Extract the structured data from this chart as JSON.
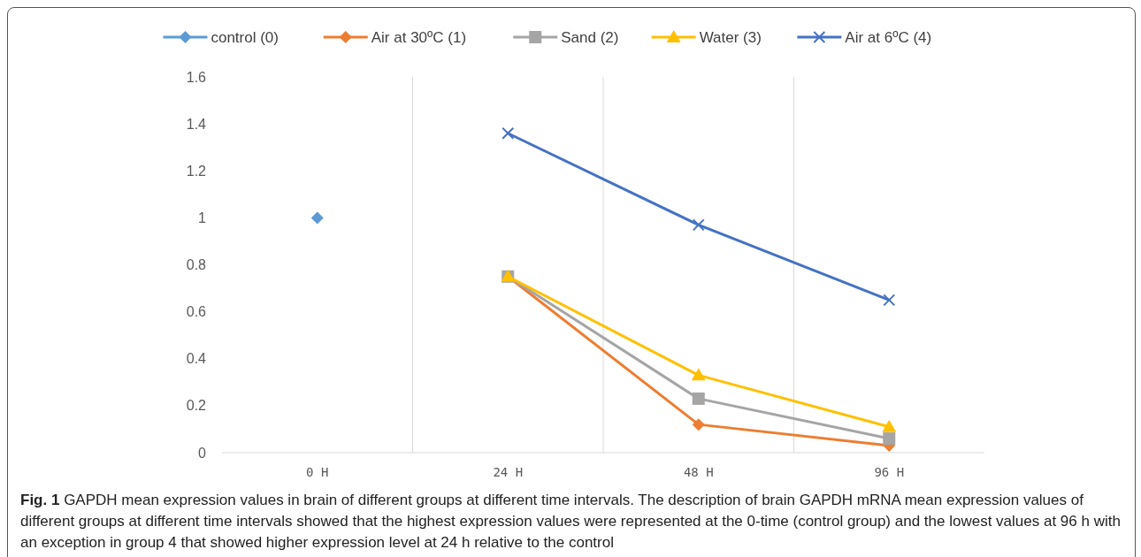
{
  "chart_data": {
    "type": "line",
    "categories": [
      "0 H",
      "24 H",
      "48 H",
      "96 H"
    ],
    "series": [
      {
        "name": "control (0)",
        "color": "#5b9bd5",
        "marker": "diamond",
        "values": [
          1.0,
          null,
          null,
          null
        ]
      },
      {
        "name": "Air at 30ºC (1)",
        "color": "#ed7d31",
        "marker": "diamond",
        "values": [
          null,
          0.75,
          0.12,
          0.03
        ]
      },
      {
        "name": "Sand (2)",
        "color": "#a5a5a5",
        "marker": "square",
        "values": [
          null,
          0.75,
          0.23,
          0.06
        ]
      },
      {
        "name": "Water (3)",
        "color": "#ffc000",
        "marker": "triangle",
        "values": [
          null,
          0.75,
          0.33,
          0.11
        ]
      },
      {
        "name": "Air at 6ºC (4)",
        "color": "#4472c4",
        "marker": "cross",
        "values": [
          null,
          1.36,
          0.97,
          0.65
        ]
      }
    ],
    "ylim": [
      0,
      1.6
    ],
    "yticks": [
      0,
      {
        "value": 0.2,
        "label": "0.2"
      },
      {
        "value": 0.4,
        "label": "0.4"
      },
      {
        "value": 0.6,
        "label": "0.6"
      },
      {
        "value": 0.8,
        "label": "0.8"
      },
      1,
      {
        "value": 1.2,
        "label": "1.2"
      },
      {
        "value": 1.4,
        "label": "1.4"
      },
      {
        "value": 1.6,
        "label": "1.6"
      }
    ],
    "grid": "x",
    "legend": "top",
    "annotations": [
      "Fig. 1",
      "GAPDH mean expression values in brain of different groups at different time intervals. The description of brain GAPDH mRNA mean expression values of different groups at different time intervals showed that the highest expression values were represented at the 0-time (control group) and the lowest values at 96 h with an exception in group 4 that showed higher expression level at 24 h relative to the control"
    ]
  }
}
